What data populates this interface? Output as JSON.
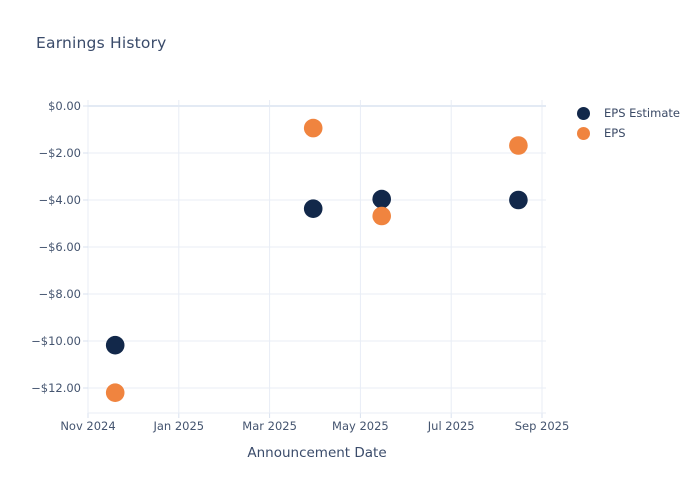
{
  "chart_data": {
    "type": "scatter",
    "title": "Earnings History",
    "xlabel": "Announcement Date",
    "ylabel": "",
    "x_axis": {
      "unit": "months since Nov 1, 2024",
      "range": [
        0,
        10
      ],
      "tick_values": [
        0,
        2,
        4,
        6,
        8,
        10
      ],
      "tick_labels": [
        "Nov 2024",
        "Jan 2025",
        "Mar 2025",
        "May 2025",
        "Jul 2025",
        "Sep 2025"
      ]
    },
    "y_axis": {
      "unit": "USD per share",
      "range": [
        0,
        -12
      ],
      "tick_values": [
        0,
        -2,
        -4,
        -6,
        -8,
        -10,
        -12
      ],
      "tick_labels": [
        "$0.00",
        "−$2.00",
        "−$4.00",
        "−$6.00",
        "−$8.00",
        "−$10.00",
        "−$12.00"
      ],
      "grid": true
    },
    "series": [
      {
        "name": "EPS Estimate",
        "color": "#12284a",
        "points": [
          {
            "x": 0.6,
            "x_approx": "mid Nov 2024",
            "y": -10.18
          },
          {
            "x": 4.96,
            "x_approx": "early Apr 2025",
            "y": -4.37
          },
          {
            "x": 6.47,
            "x_approx": "mid May 2025",
            "y": -3.96
          },
          {
            "x": 9.48,
            "x_approx": "mid Aug 2025",
            "y": -4.0
          }
        ]
      },
      {
        "name": "EPS",
        "color": "#f0843f",
        "points": [
          {
            "x": 0.6,
            "x_approx": "mid Nov 2024",
            "y": -12.2
          },
          {
            "x": 4.96,
            "x_approx": "early Apr 2025",
            "y": -0.94
          },
          {
            "x": 6.47,
            "x_approx": "mid May 2025",
            "y": -4.68
          },
          {
            "x": 9.48,
            "x_approx": "mid Aug 2025",
            "y": -1.68
          }
        ]
      }
    ],
    "legend": {
      "position": "top-right",
      "items": [
        "EPS Estimate",
        "EPS"
      ]
    },
    "style": {
      "grid_color": "#e8edf6",
      "zero_line_color": "#e3eaf4",
      "tick_color": "#d9e1ef",
      "tick_text_color": "#44546f",
      "title_color": "#3a4b6a",
      "marker_radius_px": 9.3
    }
  }
}
